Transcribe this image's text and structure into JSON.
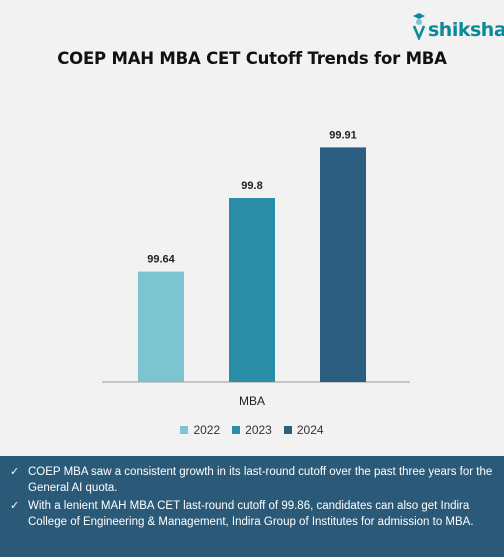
{
  "brand": {
    "name": "shiksha",
    "accent": "#0b8a99"
  },
  "chart_data": {
    "type": "bar",
    "title": "COEP MAH MBA CET Cutoff Trends for MBA",
    "categories": [
      "MBA"
    ],
    "series": [
      {
        "name": "2022",
        "values": [
          99.64
        ],
        "color": "#7cc4cf",
        "label": "99.64"
      },
      {
        "name": "2023",
        "values": [
          99.8
        ],
        "color": "#2a8ea8",
        "label": "99.8"
      },
      {
        "name": "2024",
        "values": [
          99.91
        ],
        "color": "#2b5e80",
        "label": "99.91"
      }
    ],
    "xlabel": "",
    "ylabel": "",
    "ylim": [
      99.4,
      100
    ],
    "grid": false,
    "legend_position": "bottom"
  },
  "notes": [
    {
      "icon": "check-icon",
      "text": "COEP MBA saw a consistent growth in its last-round cutoff over the past three years for the General AI quota."
    },
    {
      "icon": "check-icon",
      "text": "With a lenient MAH MBA CET last-round cutoff of 99.86, candidates can also get Indira College of Engineering & Management, Indira Group of Institutes for admission to MBA."
    }
  ],
  "colors": {
    "notes_background": "#2b5a78",
    "page_background": "#f2f2f2"
  }
}
